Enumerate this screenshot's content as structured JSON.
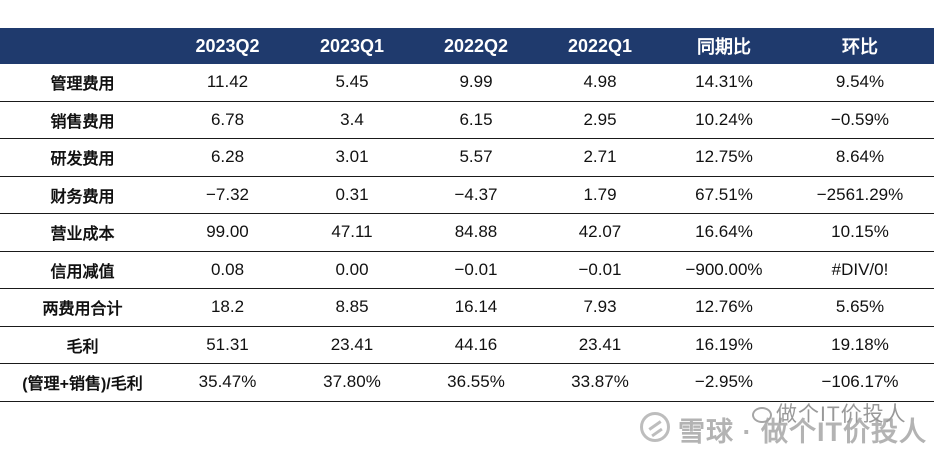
{
  "table": {
    "headers": [
      "",
      "2023Q2",
      "2023Q1",
      "2022Q2",
      "2022Q1",
      "同期比",
      "环比"
    ],
    "rows": [
      {
        "label": "管理费用",
        "values": [
          "11.42",
          "5.45",
          "9.99",
          "4.98",
          "14.31%",
          "9.54%"
        ]
      },
      {
        "label": "销售费用",
        "values": [
          "6.78",
          "3.4",
          "6.15",
          "2.95",
          "10.24%",
          "−0.59%"
        ]
      },
      {
        "label": "研发费用",
        "values": [
          "6.28",
          "3.01",
          "5.57",
          "2.71",
          "12.75%",
          "8.64%"
        ]
      },
      {
        "label": "财务费用",
        "values": [
          "−7.32",
          "0.31",
          "−4.37",
          "1.79",
          "67.51%",
          "−2561.29%"
        ]
      },
      {
        "label": "营业成本",
        "values": [
          "99.00",
          "47.11",
          "84.88",
          "42.07",
          "16.64%",
          "10.15%"
        ]
      },
      {
        "label": "信用减值",
        "values": [
          "0.08",
          "0.00",
          "−0.01",
          "−0.01",
          "−900.00%",
          "#DIV/0!"
        ]
      },
      {
        "label": "两费用合计",
        "values": [
          "18.2",
          "8.85",
          "16.14",
          "7.93",
          "12.76%",
          "5.65%"
        ]
      },
      {
        "label": "毛利",
        "values": [
          "51.31",
          "23.41",
          "44.16",
          "23.41",
          "16.19%",
          "19.18%"
        ]
      },
      {
        "label": "(管理+销售)/毛利",
        "values": [
          "35.47%",
          "37.80%",
          "36.55%",
          "33.87%",
          "−2.95%",
          "−106.17%"
        ]
      }
    ]
  },
  "watermark": {
    "main": "雪球 · 做个IT价投人",
    "sub": "做个IT价投人"
  }
}
